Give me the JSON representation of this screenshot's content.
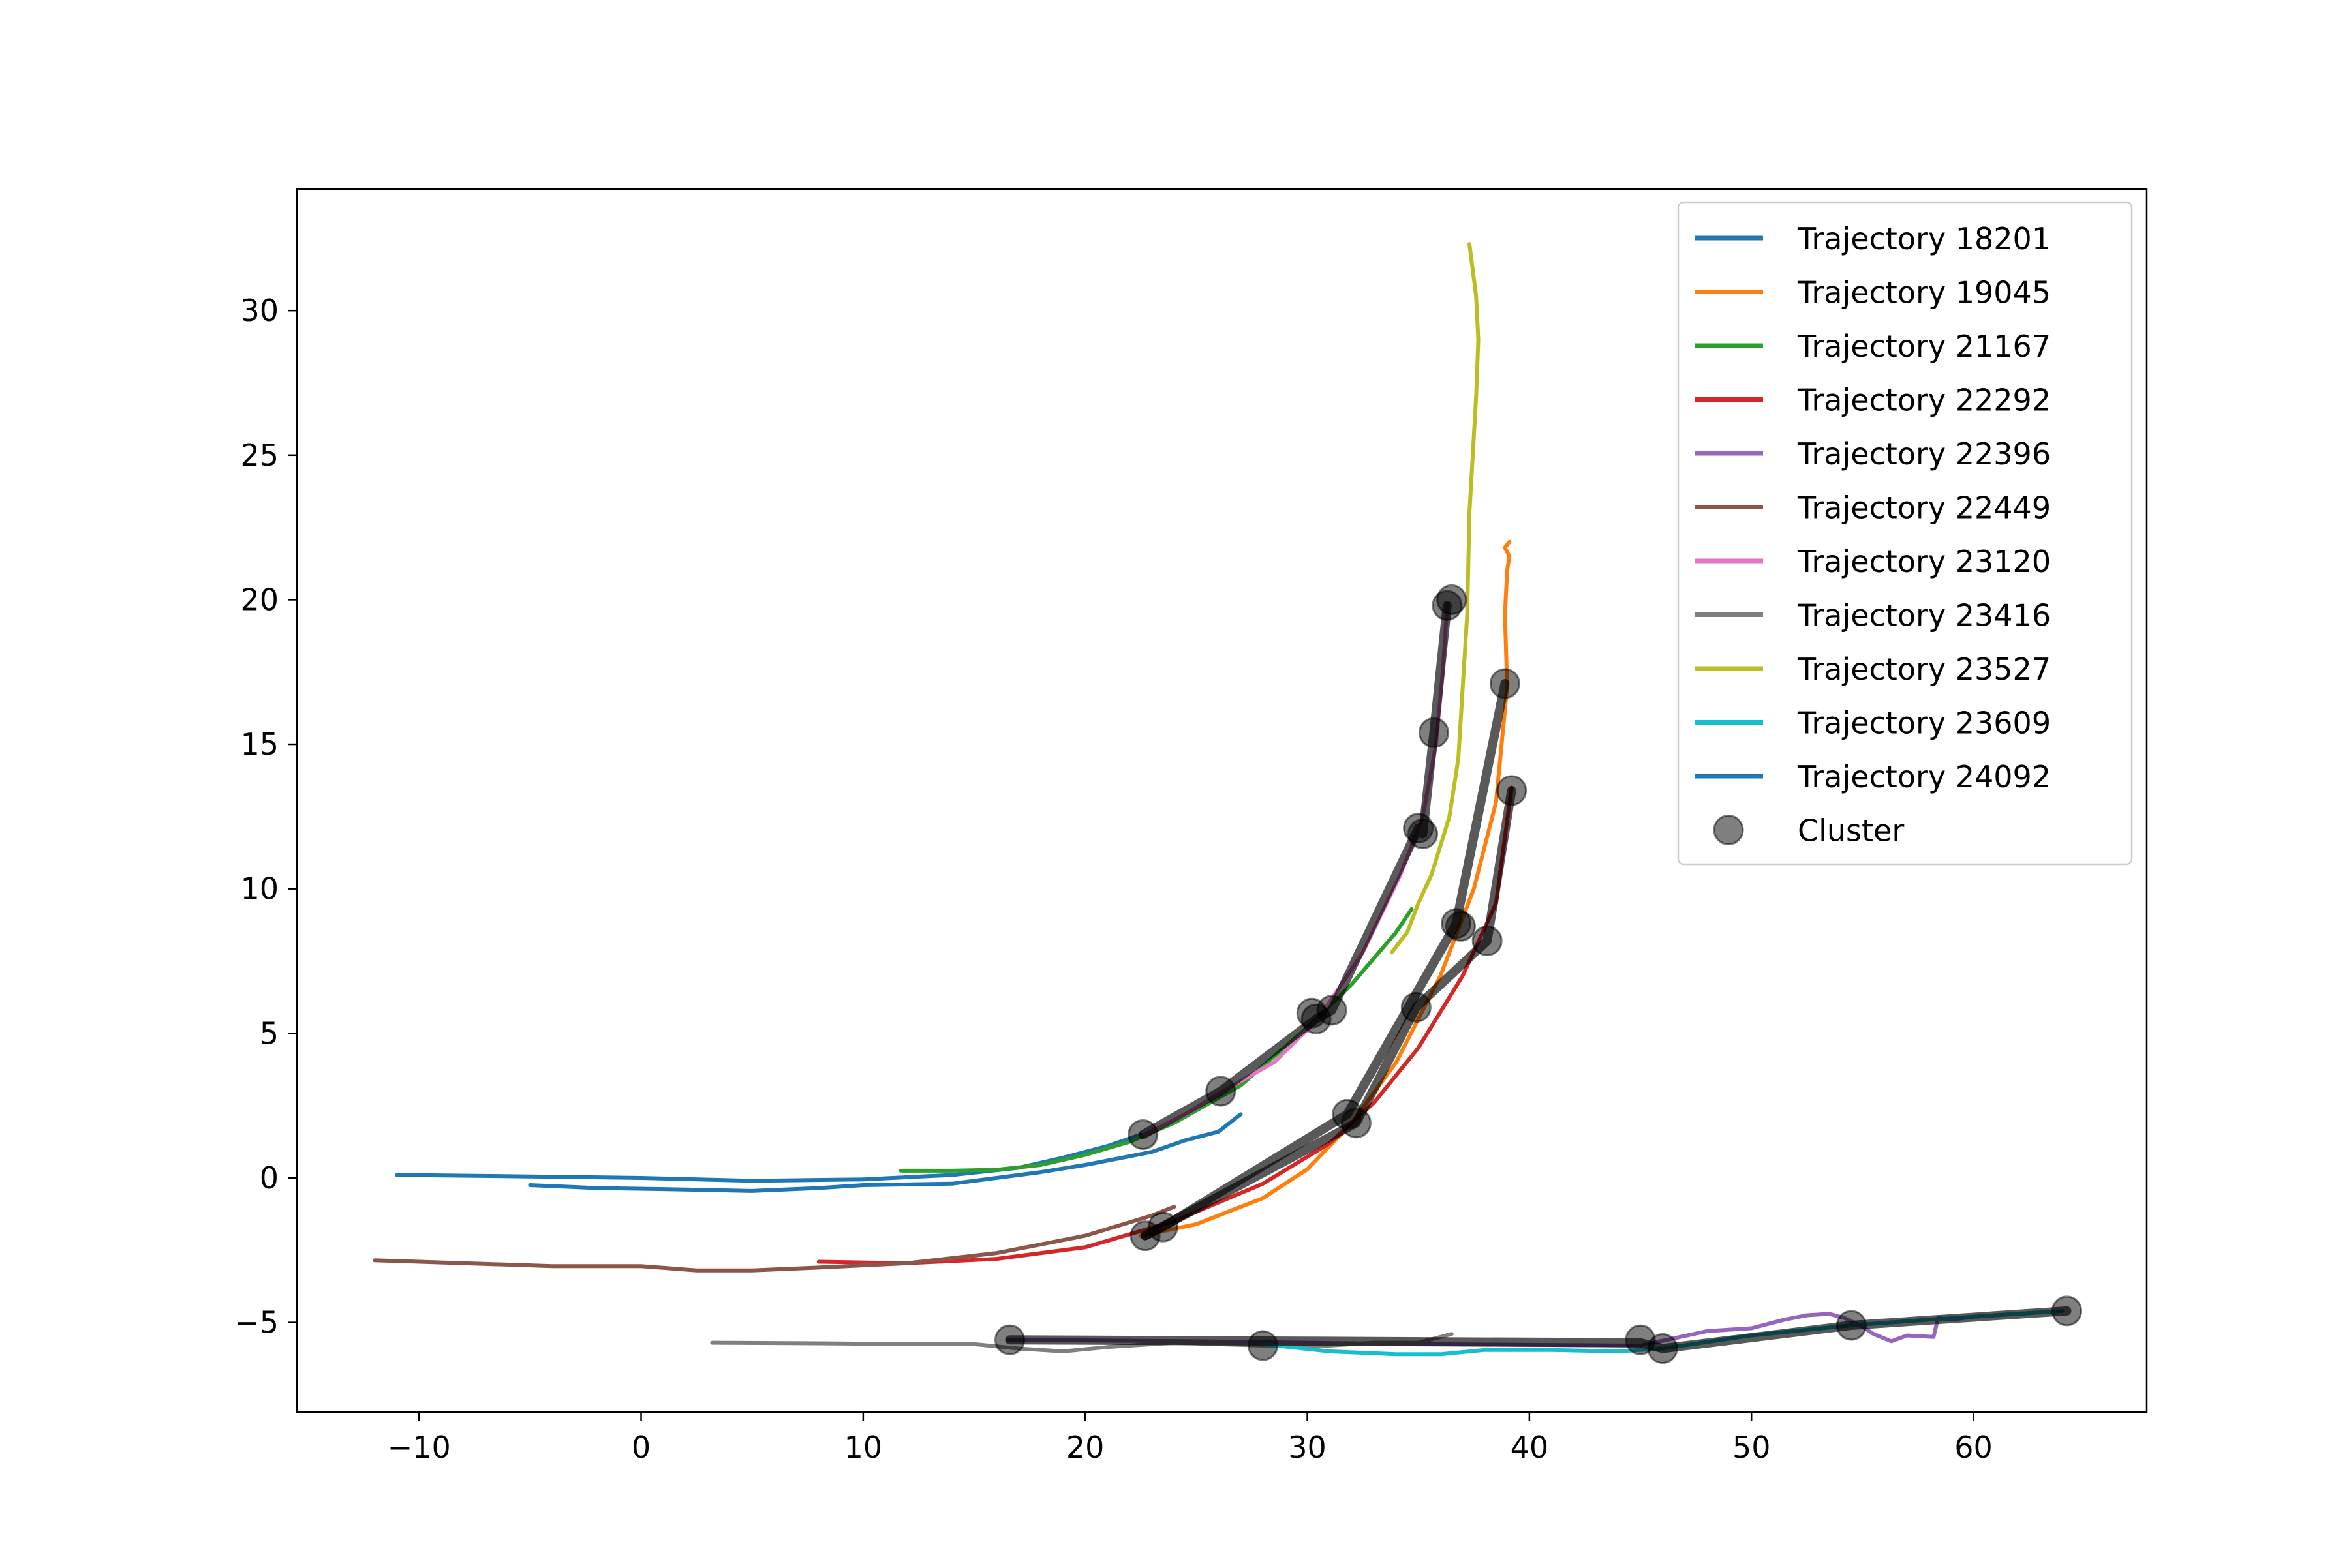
{
  "chart_data": {
    "type": "line",
    "title": "",
    "xlabel": "",
    "ylabel": "",
    "xlim": [
      -15.5,
      67.8
    ],
    "ylim": [
      -8.1,
      34.2
    ],
    "xticks": [
      -10,
      0,
      10,
      20,
      30,
      40,
      50,
      60
    ],
    "xtick_labels": [
      "−10",
      "0",
      "10",
      "20",
      "30",
      "40",
      "50",
      "60"
    ],
    "yticks": [
      -5,
      0,
      5,
      10,
      15,
      20,
      25,
      30
    ],
    "ytick_labels": [
      "−5",
      "0",
      "5",
      "10",
      "15",
      "20",
      "25",
      "30"
    ],
    "grid": false,
    "legend_position": "top-right",
    "series": [
      {
        "name": "Trajectory 18201",
        "color": "#1f77b4",
        "points": [
          [
            -11,
            0.1
          ],
          [
            -5,
            0.05
          ],
          [
            0,
            0.0
          ],
          [
            5,
            -0.1
          ],
          [
            10,
            -0.05
          ],
          [
            14,
            0.1
          ],
          [
            17,
            0.35
          ],
          [
            19,
            0.7
          ],
          [
            21,
            1.1
          ],
          [
            22.5,
            1.5
          ]
        ]
      },
      {
        "name": "Trajectory 19045",
        "color": "#ff7f0e",
        "points": [
          [
            22.5,
            -2.0
          ],
          [
            25,
            -1.6
          ],
          [
            28,
            -0.7
          ],
          [
            30,
            0.3
          ],
          [
            32,
            1.9
          ],
          [
            34,
            4.0
          ],
          [
            36,
            7.0
          ],
          [
            37.5,
            10.0
          ],
          [
            38.5,
            13.0
          ],
          [
            39,
            17.0
          ],
          [
            38.9,
            19.5
          ],
          [
            39,
            21.0
          ],
          [
            39.1,
            21.5
          ],
          [
            38.9,
            21.8
          ],
          [
            39.1,
            22.0
          ]
        ]
      },
      {
        "name": "Trajectory 21167",
        "color": "#2ca02c",
        "points": [
          [
            11.7,
            0.25
          ],
          [
            14,
            0.25
          ],
          [
            16,
            0.28
          ],
          [
            18,
            0.45
          ],
          [
            20,
            0.8
          ],
          [
            22,
            1.25
          ],
          [
            24,
            1.9
          ],
          [
            27,
            3.2
          ],
          [
            30,
            5.2
          ],
          [
            32,
            6.7
          ],
          [
            34,
            8.5
          ],
          [
            34.7,
            9.3
          ]
        ]
      },
      {
        "name": "Trajectory 22292",
        "color": "#d62728",
        "points": [
          [
            8,
            -2.9
          ],
          [
            12,
            -2.95
          ],
          [
            16,
            -2.8
          ],
          [
            20,
            -2.4
          ],
          [
            24,
            -1.5
          ],
          [
            28,
            -0.2
          ],
          [
            31,
            1.2
          ],
          [
            33,
            2.6
          ],
          [
            35,
            4.5
          ],
          [
            37,
            7.0
          ],
          [
            38.5,
            9.5
          ],
          [
            39.2,
            13.5
          ]
        ]
      },
      {
        "name": "Trajectory 22396",
        "color": "#9467bd",
        "points": [
          [
            16.5,
            -5.6
          ],
          [
            25,
            -5.65
          ],
          [
            35,
            -5.75
          ],
          [
            45,
            -5.8
          ],
          [
            48,
            -5.3
          ],
          [
            50,
            -5.2
          ],
          [
            51.5,
            -4.9
          ],
          [
            52.5,
            -4.75
          ],
          [
            53.5,
            -4.7
          ],
          [
            54.2,
            -4.85
          ],
          [
            55,
            -5.15
          ],
          [
            55.5,
            -5.4
          ],
          [
            56.3,
            -5.65
          ],
          [
            57,
            -5.45
          ],
          [
            58.2,
            -5.5
          ],
          [
            58.4,
            -4.85
          ],
          [
            59,
            -4.9
          ],
          [
            60,
            -4.8
          ],
          [
            64,
            -4.6
          ]
        ]
      },
      {
        "name": "Trajectory 22449",
        "color": "#8c564b",
        "points": [
          [
            -12,
            -2.85
          ],
          [
            -8,
            -2.95
          ],
          [
            -4,
            -3.05
          ],
          [
            0,
            -3.05
          ],
          [
            2.5,
            -3.2
          ],
          [
            5,
            -3.2
          ],
          [
            8,
            -3.1
          ],
          [
            12,
            -2.95
          ],
          [
            16,
            -2.6
          ],
          [
            20,
            -2.0
          ],
          [
            23,
            -1.3
          ],
          [
            24,
            -1.0
          ]
        ]
      },
      {
        "name": "Trajectory 23120",
        "color": "#e377c2",
        "points": [
          [
            22.7,
            1.5
          ],
          [
            24.5,
            2.2
          ],
          [
            26.2,
            3.0
          ],
          [
            28.5,
            4.0
          ],
          [
            30.5,
            5.5
          ],
          [
            32.5,
            7.8
          ],
          [
            34.2,
            10.5
          ],
          [
            35.2,
            12.5
          ],
          [
            35.8,
            15.0
          ],
          [
            36.1,
            17.5
          ],
          [
            36.3,
            19.8
          ]
        ]
      },
      {
        "name": "Trajectory 23416",
        "color": "#7f7f7f",
        "points": [
          [
            3.2,
            -5.7
          ],
          [
            8,
            -5.72
          ],
          [
            12,
            -5.75
          ],
          [
            15,
            -5.75
          ],
          [
            17,
            -5.9
          ],
          [
            19,
            -6.0
          ],
          [
            21,
            -5.85
          ],
          [
            24,
            -5.7
          ],
          [
            28,
            -5.8
          ],
          [
            31,
            -5.8
          ],
          [
            33,
            -5.7
          ],
          [
            35,
            -5.7
          ],
          [
            36.5,
            -5.4
          ]
        ]
      },
      {
        "name": "Trajectory 23527",
        "color": "#bcbd22",
        "points": [
          [
            33.8,
            7.8
          ],
          [
            34.5,
            8.5
          ],
          [
            35,
            9.5
          ],
          [
            35.6,
            10.5
          ],
          [
            36,
            11.5
          ],
          [
            36.4,
            12.5
          ],
          [
            36.8,
            14.5
          ],
          [
            37,
            17.0
          ],
          [
            37.2,
            19.5
          ],
          [
            37.3,
            23.0
          ],
          [
            37.6,
            27.0
          ],
          [
            37.7,
            29.0
          ],
          [
            37.6,
            30.5
          ],
          [
            37.3,
            32.3
          ]
        ]
      },
      {
        "name": "Trajectory 23609",
        "color": "#17becf",
        "points": [
          [
            28,
            -5.75
          ],
          [
            31,
            -6.0
          ],
          [
            34,
            -6.1
          ],
          [
            36,
            -6.1
          ],
          [
            38,
            -5.95
          ],
          [
            41,
            -5.95
          ],
          [
            44,
            -6.0
          ],
          [
            46,
            -5.9
          ],
          [
            50,
            -5.45
          ],
          [
            54.5,
            -5.1
          ],
          [
            58,
            -4.9
          ],
          [
            62,
            -4.7
          ],
          [
            64,
            -4.6
          ]
        ]
      },
      {
        "name": "Trajectory 24092",
        "color": "#1f77b4",
        "points": [
          [
            -5,
            -0.25
          ],
          [
            -2,
            -0.35
          ],
          [
            2,
            -0.4
          ],
          [
            5,
            -0.45
          ],
          [
            8,
            -0.35
          ],
          [
            10,
            -0.25
          ],
          [
            14,
            -0.2
          ],
          [
            18,
            0.2
          ],
          [
            20,
            0.45
          ],
          [
            23,
            0.9
          ],
          [
            24.5,
            1.3
          ],
          [
            26,
            1.6
          ],
          [
            27,
            2.2
          ]
        ]
      }
    ],
    "cluster": {
      "name": "Cluster",
      "color": "#000000",
      "points": [
        [
          16.6,
          -5.6
        ],
        [
          22.6,
          1.5
        ],
        [
          22.7,
          -2.0
        ],
        [
          23.5,
          -1.7
        ],
        [
          26.1,
          3.0
        ],
        [
          28,
          -5.8
        ],
        [
          30.2,
          5.7
        ],
        [
          30.4,
          5.5
        ],
        [
          31.1,
          5.8
        ],
        [
          31.8,
          2.2
        ],
        [
          32.2,
          1.9
        ],
        [
          34.9,
          5.9
        ],
        [
          35,
          12.1
        ],
        [
          35.2,
          11.9
        ],
        [
          35.7,
          15.4
        ],
        [
          36.3,
          19.8
        ],
        [
          36.5,
          20.0
        ],
        [
          36.7,
          8.8
        ],
        [
          36.9,
          8.7
        ],
        [
          38.1,
          8.2
        ],
        [
          38.9,
          17.1
        ],
        [
          39.2,
          13.4
        ],
        [
          45,
          -5.6
        ],
        [
          46,
          -5.9
        ],
        [
          54.5,
          -5.1
        ],
        [
          64.2,
          -4.6
        ]
      ],
      "paths": [
        [
          [
            22.6,
            1.5
          ],
          [
            26.1,
            3.0
          ],
          [
            30.4,
            5.5
          ],
          [
            31.1,
            5.8
          ],
          [
            35,
            12.1
          ],
          [
            35.2,
            11.9
          ],
          [
            35.7,
            15.4
          ],
          [
            36.3,
            19.8
          ]
        ],
        [
          [
            22.7,
            -2.0
          ],
          [
            23.5,
            -1.7
          ],
          [
            31.8,
            2.2
          ],
          [
            36.7,
            8.8
          ],
          [
            38.9,
            17.1
          ]
        ],
        [
          [
            22.7,
            -2.0
          ],
          [
            32.2,
            1.9
          ],
          [
            34.9,
            5.9
          ],
          [
            38.1,
            8.2
          ],
          [
            39.2,
            13.4
          ]
        ],
        [
          [
            16.6,
            -5.6
          ],
          [
            45,
            -5.7
          ],
          [
            46,
            -5.9
          ],
          [
            54.5,
            -5.1
          ],
          [
            64.2,
            -4.6
          ]
        ]
      ]
    }
  }
}
